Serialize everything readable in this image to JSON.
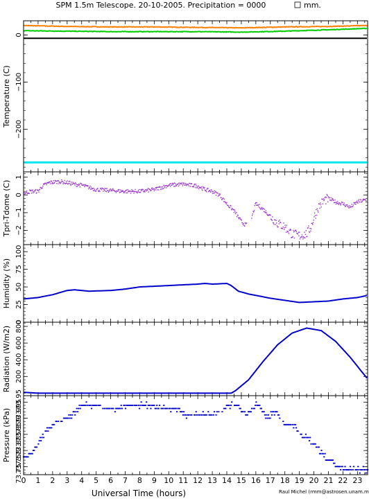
{
  "page": {
    "title": "SPM 1.5m Telescope. 20-10-2005. Precipitation = 0000",
    "title_suffix": "mm.",
    "xlabel": "Universal Time (hours)",
    "credit": "Raul Michel (rmm@astrosen.unam.mx)",
    "x_ticks": [
      "0",
      "1",
      "2",
      "3",
      "4",
      "5",
      "6",
      "7",
      "8",
      "9",
      "10",
      "11",
      "12",
      "13",
      "14",
      "15",
      "16",
      "17",
      "18",
      "19",
      "20",
      "21",
      "22",
      "23"
    ]
  },
  "colors": {
    "axis": "#000000",
    "temp_orange": "#ff7f00",
    "temp_green": "#00cc00",
    "temp_cyan": "#00e5ee",
    "temp_black": "#000000",
    "tdiff": "#9932cc",
    "series": "#0000cd"
  },
  "chart_data": [
    {
      "type": "line",
      "ylabel": "Temperature (C)",
      "xlim": [
        0,
        23.7
      ],
      "ylim": [
        -290,
        30
      ],
      "y_ticks": [
        0,
        -100,
        -200
      ],
      "y_tick_labels": [
        "0",
        "−100",
        "−200"
      ],
      "series": [
        {
          "color": "orange",
          "x": [
            0,
            3,
            6,
            9,
            12,
            15,
            18,
            21,
            23.7
          ],
          "y": [
            20,
            18,
            17,
            17,
            16,
            15,
            17,
            18,
            20
          ]
        },
        {
          "color": "green",
          "x": [
            0,
            3,
            6,
            9,
            12,
            15,
            18,
            21,
            23.7
          ],
          "y": [
            9,
            8,
            7,
            7,
            7,
            6,
            8,
            11,
            14
          ]
        },
        {
          "color": "black",
          "x": [
            0,
            23.7
          ],
          "y": [
            -7,
            -7
          ]
        },
        {
          "color": "cyan",
          "x": [
            0,
            23.7
          ],
          "y": [
            -270,
            -270
          ]
        }
      ]
    },
    {
      "type": "scatter",
      "ylabel": "Tpri-Tdome (C)",
      "xlim": [
        0,
        23.7
      ],
      "ylim": [
        -2.8,
        1.3
      ],
      "y_ticks": [
        1,
        0,
        -1,
        -2
      ],
      "y_tick_labels": [
        "1",
        "0",
        "−1",
        "−2"
      ],
      "x": [
        0,
        0.5,
        1,
        1.3,
        1.8,
        2.5,
        3,
        3.5,
        4,
        5,
        6,
        7,
        8,
        9,
        10,
        11,
        12,
        12.5,
        13,
        13.5,
        14,
        14.5,
        15,
        15.3,
        15.6,
        16,
        16.5,
        17,
        17.5,
        18,
        18.5,
        19,
        19.5,
        19.8,
        20,
        20.3,
        20.7,
        21,
        21.5,
        22,
        22.5,
        23,
        23.5
      ],
      "y": [
        0.1,
        0.2,
        0.2,
        0.5,
        0.7,
        0.75,
        0.7,
        0.6,
        0.55,
        0.3,
        0.25,
        0.2,
        0.2,
        0.3,
        0.55,
        0.6,
        0.5,
        0.3,
        0.2,
        0.0,
        -0.5,
        -0.9,
        -1.5,
        -1.7,
        -1.6,
        -0.5,
        -0.8,
        -1.2,
        -1.6,
        -1.8,
        -2.2,
        -2.3,
        -2.2,
        -1.8,
        -1.3,
        -0.7,
        -0.3,
        -0.2,
        -0.4,
        -0.5,
        -0.7,
        -0.4,
        -0.3
      ]
    },
    {
      "type": "line",
      "ylabel": "Humidity (%)",
      "xlim": [
        0,
        23.7
      ],
      "ylim": [
        0,
        110
      ],
      "y_ticks": [
        0,
        25,
        50,
        75,
        100
      ],
      "y_tick_labels": [
        "0",
        "25",
        "50",
        "75",
        "100"
      ],
      "x": [
        0,
        1,
        2,
        3,
        3.5,
        4.5,
        6,
        7,
        8,
        9,
        10,
        11,
        12,
        12.5,
        13,
        14,
        14.3,
        14.8,
        15.5,
        16,
        17,
        18,
        19,
        20,
        21,
        22,
        23,
        23.7
      ],
      "y": [
        33,
        35,
        39,
        45,
        46,
        44,
        45,
        47,
        50,
        51,
        52,
        53,
        54,
        55,
        54,
        55,
        52,
        44,
        40,
        38,
        34,
        31,
        28,
        29,
        30,
        33,
        35,
        38
      ]
    },
    {
      "type": "line",
      "ylabel": "Radiation (W/m2)",
      "xlim": [
        0,
        23.7
      ],
      "ylim": [
        -30,
        850
      ],
      "y_ticks": [
        200,
        400,
        600,
        800
      ],
      "y_tick_labels": [
        "200",
        "400",
        "600",
        "800"
      ],
      "x": [
        0,
        1,
        2,
        5,
        10,
        14.3,
        14.6,
        15.5,
        16.5,
        17.5,
        18.5,
        19.5,
        20.5,
        21.5,
        22.5,
        23.7
      ],
      "y": [
        10,
        0,
        0,
        0,
        0,
        0,
        30,
        160,
        380,
        580,
        720,
        780,
        750,
        620,
        430,
        170
      ]
    },
    {
      "type": "scatter",
      "ylabel": "Pressure (kPa)",
      "xlim": [
        0,
        23.7
      ],
      "ylim": [
        73.725,
        73.97
      ],
      "y_ticks": [
        73.75,
        73.8,
        73.85,
        73.9,
        73.95
      ],
      "y_tick_labels": [
        "73.75",
        "73.8",
        "73.85",
        "73.9",
        "73.95"
      ],
      "y_tick_label_sets": [
        [
          "73.75",
          "73.8",
          "73.85",
          "73.9",
          "73.95"
        ],
        [
          "73.75",
          "73.8",
          "73.85",
          "73.9",
          "73.95"
        ]
      ],
      "x": [
        0,
        0.3,
        0.6,
        1.0,
        1.4,
        1.8,
        2.4,
        3.0,
        3.6,
        4.0,
        4.8,
        5.6,
        6.4,
        7.2,
        8.0,
        8.8,
        9.6,
        10.4,
        11.2,
        12.0,
        12.8,
        13.6,
        14.2,
        14.8,
        15.2,
        15.6,
        16.0,
        16.4,
        16.8,
        17.2,
        17.6,
        18.0,
        18.4,
        18.8,
        19.2,
        19.6,
        20.0,
        20.4,
        20.8,
        21.2,
        21.6,
        22.0,
        22.4,
        22.8,
        23.2,
        23.6
      ],
      "y": [
        73.78,
        73.78,
        73.79,
        73.82,
        73.85,
        73.87,
        73.89,
        73.9,
        73.92,
        73.94,
        73.94,
        73.93,
        73.93,
        73.94,
        73.94,
        73.94,
        73.93,
        73.93,
        73.91,
        73.91,
        73.91,
        73.92,
        73.94,
        73.94,
        73.91,
        73.92,
        73.94,
        73.93,
        73.9,
        73.92,
        73.91,
        73.88,
        73.88,
        73.87,
        73.84,
        73.84,
        73.82,
        73.8,
        73.78,
        73.77,
        73.75,
        73.74,
        73.74,
        73.74,
        73.74,
        73.74
      ]
    }
  ]
}
